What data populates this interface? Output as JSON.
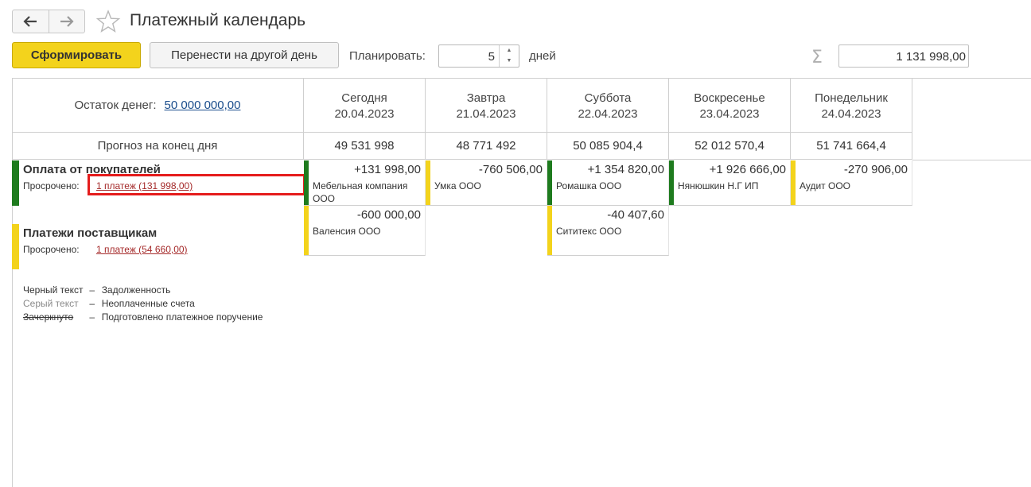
{
  "window": {
    "title": "Платежный календарь"
  },
  "toolbar": {
    "generate_label": "Сформировать",
    "move_label": "Перенести на другой день",
    "plan_label": "Планировать:",
    "plan_value": "5",
    "days_label": "дней",
    "sigma_symbol": "Σ",
    "total_value": "1 131 998,00"
  },
  "summary": {
    "balance_label": "Остаток денег:",
    "balance_value": "50 000 000,00",
    "forecast_label": "Прогноз на конец дня"
  },
  "days": [
    {
      "name": "Сегодня",
      "date": "20.04.2023",
      "forecast": "49 531 998"
    },
    {
      "name": "Завтра",
      "date": "21.04.2023",
      "forecast": "48 771 492"
    },
    {
      "name": "Суббота",
      "date": "22.04.2023",
      "forecast": "50 085 904,4"
    },
    {
      "name": "Воскресенье",
      "date": "23.04.2023",
      "forecast": "52 012 570,4"
    },
    {
      "name": "Понедельник",
      "date": "24.04.2023",
      "forecast": "51 741 664,4"
    }
  ],
  "sections": {
    "customers": {
      "title": "Оплата от покупателей",
      "overdue_label": "Просрочено:",
      "overdue_link": "1 платеж (131 998,00)",
      "bar_color": "#1e7b1e"
    },
    "suppliers": {
      "title": "Платежи поставщикам",
      "overdue_label": "Просрочено:",
      "overdue_link": "1 платеж (54 660,00)",
      "bar_color": "#f3d31c"
    }
  },
  "payments": {
    "customers": [
      {
        "amount": "+131 998,00",
        "name": "Мебельная компания ООО",
        "status_color": "#1e7b1e"
      },
      {
        "amount": "-760 506,00",
        "name": "Умка ООО",
        "status_color": "#f3d31c"
      },
      {
        "amount": "+1 354 820,00",
        "name": "Ромашка ООО",
        "status_color": "#1e7b1e"
      },
      {
        "amount": "+1 926 666,00",
        "name": "Нянюшкин Н.Г ИП",
        "status_color": "#1e7b1e"
      },
      {
        "amount": "-270 906,00",
        "name": "Аудит ООО",
        "status_color": "#f3d31c"
      }
    ],
    "suppliers": [
      {
        "amount": "-600 000,00",
        "name": "Валенсия ООО",
        "status_color": "#f3d31c"
      },
      {
        "amount": "-40 407,60",
        "name": "Сититекс ООО",
        "status_color": "#f3d31c"
      }
    ]
  },
  "legend": [
    {
      "key": "Черный текст",
      "dash": "–",
      "desc": "Задолженность",
      "key_color": "#333333"
    },
    {
      "key": "Серый текст",
      "dash": "–",
      "desc": "Неоплаченные счета",
      "key_color": "#8a8a8a"
    },
    {
      "key": "Зачеркнуто",
      "dash": "–",
      "desc": "Подготовлено платежное поручение",
      "key_color": "#333333"
    }
  ]
}
